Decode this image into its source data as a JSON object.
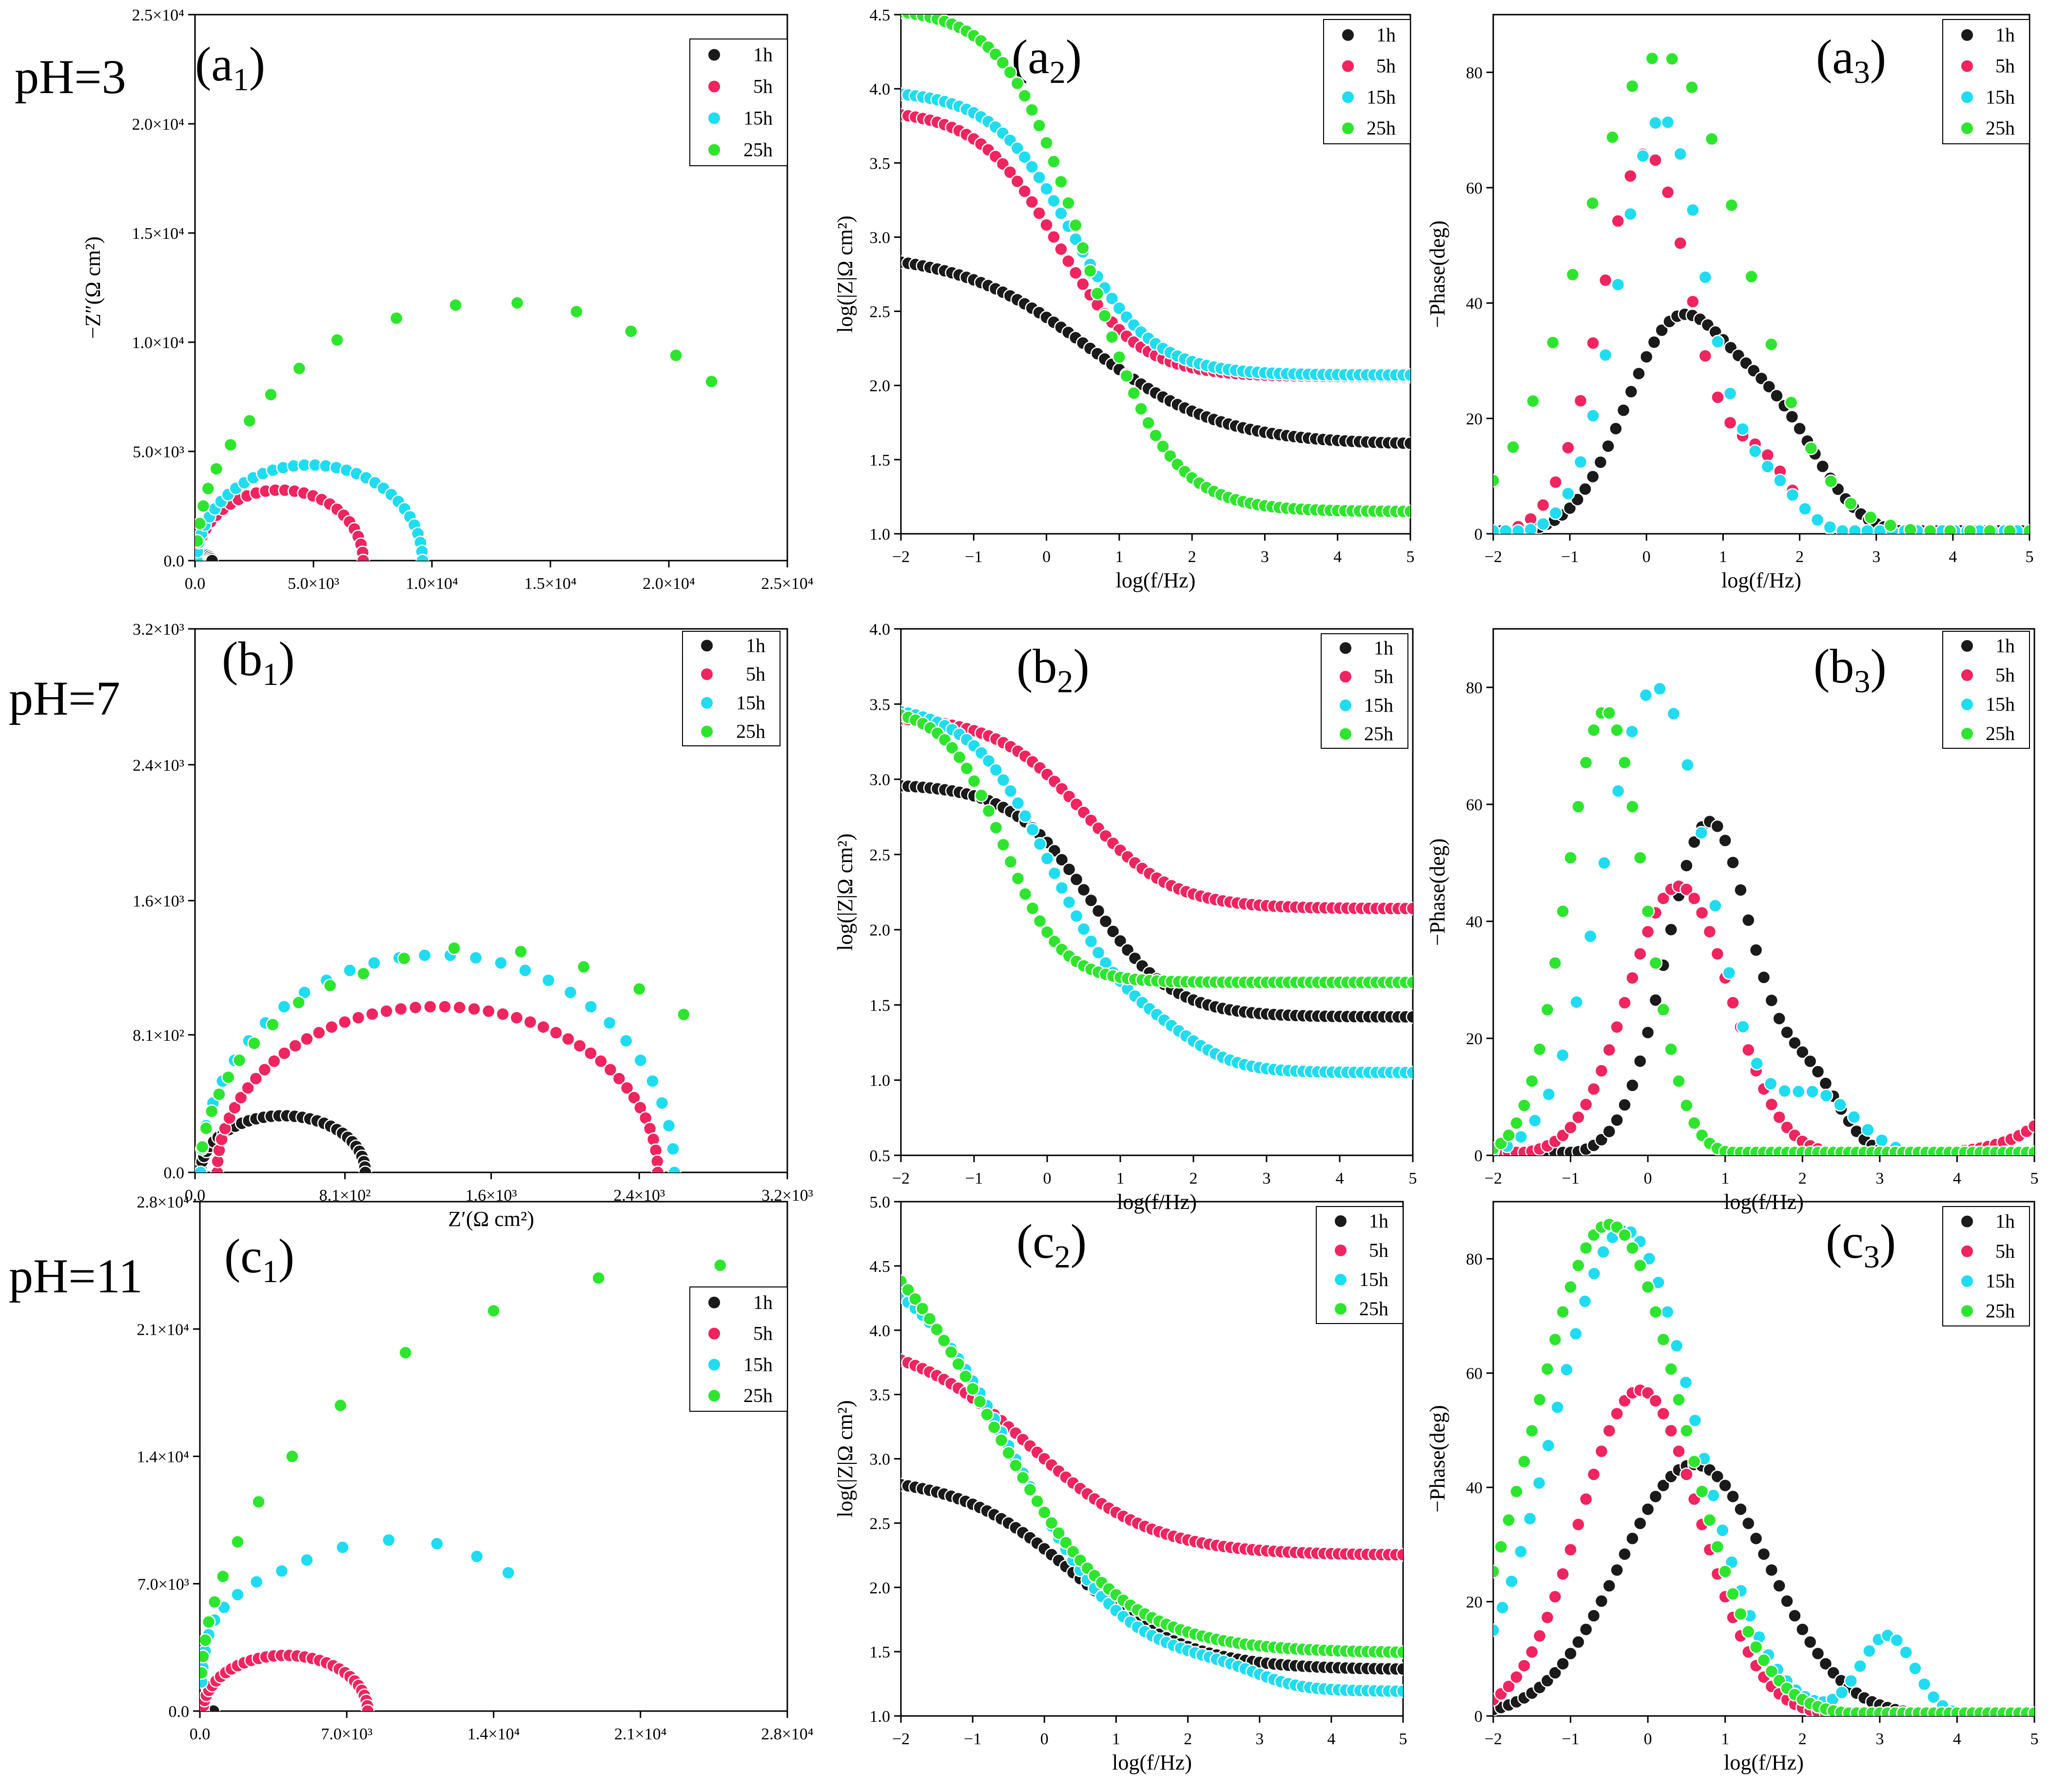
{
  "figure": {
    "row_labels": [
      "pH=3",
      "pH=7",
      "pH=11"
    ],
    "series_names": [
      "1h",
      "5h",
      "15h",
      "25h"
    ],
    "colors": {
      "1h": "#1a1a1a",
      "5h": "#f0245f",
      "15h": "#1fdcf0",
      "25h": "#2ee52e"
    }
  },
  "chart_data": [
    {
      "id": "a1",
      "type": "scatter",
      "panel_label": "a",
      "panel_sub": "1",
      "xlabel": "",
      "ylabel": "−Z″(Ω cm²)",
      "xlim": [
        0,
        25000
      ],
      "ylim": [
        0,
        25000
      ],
      "xticks": [
        0,
        5000,
        10000,
        15000,
        20000,
        25000
      ],
      "xticklabels": [
        "0.0",
        "5.0×10³",
        "1.0×10⁴",
        "1.5×10⁴",
        "2.0×10⁴",
        "2.5×10⁴"
      ],
      "yticks": [
        0,
        5000,
        10000,
        15000,
        20000,
        25000
      ],
      "yticklabels": [
        "0.0",
        "5.0×10³",
        "1.0×10⁴",
        "1.5×10⁴",
        "2.0×10⁴",
        "2.5×10⁴"
      ],
      "series": [
        {
          "name": "1h",
          "shape": "arc",
          "start": 30,
          "end": 720,
          "n": 14
        },
        {
          "name": "5h",
          "shape": "arc",
          "start": 80,
          "end": 7100,
          "n": 28
        },
        {
          "name": "15h",
          "shape": "arc",
          "start": 80,
          "end": 9600,
          "n": 34
        },
        {
          "name": "25h",
          "x": [
            100,
            200,
            350,
            550,
            900,
            1500,
            2300,
            3200,
            4400,
            6000,
            8500,
            11000,
            13600,
            16100,
            18400,
            20300,
            21800
          ],
          "y": [
            900,
            1700,
            2500,
            3300,
            4200,
            5300,
            6400,
            7600,
            8800,
            10100,
            11100,
            11700,
            11800,
            11400,
            10500,
            9400,
            8200
          ]
        }
      ]
    },
    {
      "id": "a2",
      "type": "scatter",
      "panel_label": "a",
      "panel_sub": "2",
      "xlabel": "log(f/Hz)",
      "ylabel": "log(|Z|Ω cm²)",
      "xlim": [
        -2,
        5
      ],
      "ylim": [
        1.0,
        4.5
      ],
      "xticks": [
        -2,
        -1,
        0,
        1,
        2,
        3,
        4,
        5
      ],
      "xticklabels": [
        "−2",
        "−1",
        "0",
        "1",
        "2",
        "3",
        "4",
        "5"
      ],
      "yticks": [
        1.0,
        1.5,
        2.0,
        2.5,
        3.0,
        3.5,
        4.0,
        4.5
      ],
      "yticklabels": [
        "1.0",
        "1.5",
        "2.0",
        "2.5",
        "3.0",
        "3.5",
        "4.0",
        "4.5"
      ],
      "series": [
        {
          "name": "1h",
          "shape": "sig",
          "lo": 1.6,
          "hi": 2.9,
          "c": 0.6,
          "w": 0.9,
          "n": 71
        },
        {
          "name": "5h",
          "shape": "sig",
          "lo": 2.06,
          "hi": 3.86,
          "c": 0.15,
          "w": 0.55,
          "n": 71
        },
        {
          "name": "15h",
          "shape": "sig",
          "lo": 2.07,
          "hi": 3.99,
          "c": 0.35,
          "w": 0.55,
          "n": 71
        },
        {
          "name": "25h",
          "shape": "sig",
          "lo": 1.15,
          "hi": 4.55,
          "c": 0.55,
          "w": 0.55,
          "n": 71
        }
      ]
    },
    {
      "id": "a3",
      "type": "scatter",
      "panel_label": "a",
      "panel_sub": "3",
      "xlabel": "log(f/Hz)",
      "ylabel": "−Phase(deg)",
      "xlim": [
        -2,
        5
      ],
      "ylim": [
        0,
        90
      ],
      "xticks": [
        -2,
        -1,
        0,
        1,
        2,
        3,
        4,
        5
      ],
      "xticklabels": [
        "−2",
        "−1",
        "0",
        "1",
        "2",
        "3",
        "4",
        "5"
      ],
      "yticks": [
        0,
        20,
        40,
        60,
        80
      ],
      "yticklabels": [
        "0",
        "20",
        "40",
        "60",
        "80"
      ],
      "series": [
        {
          "name": "1h",
          "shape": "peak",
          "p1": [
            36,
            0.4,
            0.75
          ],
          "p2": [
            18,
            1.7,
            0.6
          ],
          "base": 0,
          "n": 71
        },
        {
          "name": "5h",
          "shape": "peak",
          "p1": [
            66,
            0.0,
            0.65
          ],
          "p2": [
            12,
            1.5,
            0.4
          ],
          "base": 0,
          "n": 44
        },
        {
          "name": "15h",
          "shape": "peak",
          "p1": [
            72,
            0.2,
            0.62
          ],
          "p2": [
            8,
            1.6,
            0.4
          ],
          "base": 0,
          "n": 44
        },
        {
          "name": "25h",
          "shape": "peak",
          "p1": [
            83,
            0.2,
            1.15
          ],
          "base": 0,
          "n": 28
        }
      ]
    },
    {
      "id": "b1",
      "type": "scatter",
      "panel_label": "b",
      "panel_sub": "1",
      "xlabel": "Z′(Ω cm²)",
      "ylabel": "",
      "xlim": [
        0,
        3200
      ],
      "ylim": [
        0,
        3200
      ],
      "xticks": [
        0,
        810,
        1600,
        2400,
        3200
      ],
      "xticklabels": [
        "0.0",
        "8.1×10²",
        "1.6×10³",
        "2.4×10³",
        "3.2×10³"
      ],
      "yticks": [
        0,
        810,
        1600,
        2400,
        3200
      ],
      "yticklabels": [
        "0.0",
        "8.1×10²",
        "1.6×10³",
        "2.4×10³",
        "3.2×10³"
      ],
      "series": [
        {
          "name": "1h",
          "shape": "arc",
          "start": 30,
          "end": 920,
          "k": 0.75,
          "n": 34
        },
        {
          "name": "5h",
          "shape": "arc",
          "start": 120,
          "end": 2500,
          "k": 0.82,
          "n": 48
        },
        {
          "name": "15h",
          "shape": "arc",
          "start": 30,
          "end": 2590,
          "k": 1.0,
          "n": 30
        },
        {
          "name": "25h",
          "x": [
            40,
            60,
            90,
            130,
            180,
            240,
            320,
            420,
            560,
            730,
            910,
            1130,
            1400,
            1760,
            2100,
            2400,
            2640
          ],
          "y": [
            150,
            260,
            360,
            460,
            560,
            660,
            760,
            870,
            1000,
            1100,
            1170,
            1260,
            1320,
            1300,
            1210,
            1080,
            930
          ]
        }
      ]
    },
    {
      "id": "b2",
      "type": "scatter",
      "panel_label": "b",
      "panel_sub": "2",
      "xlabel": "log(f/Hz)",
      "ylabel": "log(|Z|Ω cm²)",
      "xlim": [
        -2,
        5
      ],
      "ylim": [
        0.5,
        4.0
      ],
      "xticks": [
        -2,
        -1,
        0,
        1,
        2,
        3,
        4,
        5
      ],
      "xticklabels": [
        "−2",
        "−1",
        "0",
        "1",
        "2",
        "3",
        "4",
        "5"
      ],
      "yticks": [
        0.5,
        1.0,
        1.5,
        2.0,
        2.5,
        3.0,
        3.5,
        4.0
      ],
      "yticklabels": [
        "0.5",
        "1.0",
        "1.5",
        "2.0",
        "2.5",
        "3.0",
        "3.5",
        "4.0"
      ],
      "series": [
        {
          "name": "1h",
          "shape": "sig",
          "lo": 1.42,
          "hi": 2.97,
          "c": 0.6,
          "w": 0.55,
          "n": 71
        },
        {
          "name": "5h",
          "shape": "sig",
          "lo": 2.14,
          "hi": 3.42,
          "c": 0.5,
          "w": 0.6,
          "n": 71
        },
        {
          "name": "15h",
          "shape": "sig2",
          "lo": 1.05,
          "hi": 3.5,
          "c": 0.05,
          "w": 0.55,
          "c2": 2.0,
          "w2": 0.35,
          "a2": 0.3,
          "n": 71
        },
        {
          "name": "25h",
          "shape": "sig",
          "lo": 1.65,
          "hi": 3.48,
          "c": -0.6,
          "w": 0.4,
          "n": 71
        }
      ]
    },
    {
      "id": "b3",
      "type": "scatter",
      "panel_label": "b",
      "panel_sub": "3",
      "xlabel": "log(f/Hz)",
      "ylabel": "−Phase(deg)",
      "xlim": [
        -2,
        5
      ],
      "ylim": [
        0,
        90
      ],
      "xticks": [
        -2,
        -1,
        0,
        1,
        2,
        3,
        4,
        5
      ],
      "xticklabels": [
        "−2",
        "−1",
        "0",
        "1",
        "2",
        "3",
        "4",
        "5"
      ],
      "yticks": [
        0,
        20,
        40,
        60,
        80
      ],
      "yticklabels": [
        "0",
        "20",
        "40",
        "60",
        "80"
      ],
      "series": [
        {
          "name": "1h",
          "shape": "peak",
          "p1": [
            57,
            0.8,
            0.62
          ],
          "p2": [
            12,
            2.1,
            0.4
          ],
          "base": 0,
          "n": 71
        },
        {
          "name": "5h",
          "shape": "peak",
          "p1": [
            46,
            0.4,
            0.72
          ],
          "base": 0,
          "tail": 5,
          "n": 71
        },
        {
          "name": "15h",
          "shape": "peak",
          "p1": [
            80,
            0.1,
            0.75
          ],
          "p2": [
            10,
            2.2,
            0.5
          ],
          "base": 0,
          "n": 40
        },
        {
          "name": "25h",
          "shape": "peak",
          "p1": [
            76,
            -0.55,
            0.55
          ],
          "base": 0,
          "n": 71
        }
      ]
    },
    {
      "id": "c1",
      "type": "scatter",
      "panel_label": "c",
      "panel_sub": "1",
      "xlabel": "",
      "ylabel": "",
      "xlim": [
        0,
        28000
      ],
      "ylim": [
        0,
        28000
      ],
      "xticks": [
        0,
        7000,
        14000,
        21000,
        28000
      ],
      "xticklabels": [
        "0.0",
        "7.0×10³",
        "1.4×10⁴",
        "2.1×10⁴",
        "2.8×10⁴"
      ],
      "yticks": [
        0,
        7000,
        14000,
        21000,
        28000
      ],
      "yticklabels": [
        "0.0",
        "7.0×10³",
        "1.4×10⁴",
        "2.1×10⁴",
        "2.8×10⁴"
      ],
      "series": [
        {
          "name": "1h",
          "shape": "arc",
          "start": 50,
          "end": 650,
          "n": 14
        },
        {
          "name": "5h",
          "shape": "arc",
          "start": 150,
          "end": 8000,
          "k": 0.78,
          "n": 34
        },
        {
          "name": "15h",
          "x": [
            80,
            140,
            250,
            420,
            700,
            1150,
            1800,
            2700,
            3900,
            5100,
            6800,
            9000,
            11300,
            13200,
            14700
          ],
          "y": [
            1600,
            2400,
            3300,
            4200,
            5000,
            5700,
            6400,
            7100,
            7700,
            8300,
            9000,
            9400,
            9200,
            8500,
            7600
          ]
        },
        {
          "name": "25h",
          "x": [
            80,
            150,
            260,
            420,
            700,
            1100,
            1800,
            2800,
            4400,
            6700,
            9800,
            14000,
            19000,
            24800
          ],
          "y": [
            2100,
            3000,
            3900,
            4900,
            6000,
            7400,
            9300,
            11500,
            14000,
            16800,
            19700,
            22000,
            23800,
            24500
          ]
        }
      ]
    },
    {
      "id": "c2",
      "type": "scatter",
      "panel_label": "c",
      "panel_sub": "2",
      "xlabel": "log(f/Hz)",
      "ylabel": "log(|Z|Ω cm²)",
      "xlim": [
        -2,
        5
      ],
      "ylim": [
        1.0,
        5.0
      ],
      "xticks": [
        -2,
        -1,
        0,
        1,
        2,
        3,
        4,
        5
      ],
      "xticklabels": [
        "−2",
        "−1",
        "0",
        "1",
        "2",
        "3",
        "4",
        "5"
      ],
      "yticks": [
        1.0,
        1.5,
        2.0,
        2.5,
        3.0,
        3.5,
        4.0,
        4.5,
        5.0
      ],
      "yticklabels": [
        "1.0",
        "1.5",
        "2.0",
        "2.5",
        "3.0",
        "3.5",
        "4.0",
        "4.5",
        "5.0"
      ],
      "series": [
        {
          "name": "1h",
          "shape": "sig",
          "lo": 1.36,
          "hi": 2.87,
          "c": 0.4,
          "w": 0.8,
          "n": 71
        },
        {
          "name": "5h",
          "shape": "sig",
          "lo": 2.25,
          "hi": 3.95,
          "c": -0.2,
          "w": 0.85,
          "n": 71
        },
        {
          "name": "15h",
          "shape": "sig2",
          "lo": 1.19,
          "hi": 4.6,
          "c": -0.4,
          "w": 0.75,
          "c2": 3.0,
          "w2": 0.3,
          "a2": 0.2,
          "n": 71
        },
        {
          "name": "25h",
          "shape": "sig",
          "lo": 1.49,
          "hi": 5.1,
          "c": -0.75,
          "w": 0.9,
          "n": 71
        }
      ]
    },
    {
      "id": "c3",
      "type": "scatter",
      "panel_label": "c",
      "panel_sub": "3",
      "xlabel": "log(f/Hz)",
      "ylabel": "−Phase(deg)",
      "xlim": [
        -2,
        5
      ],
      "ylim": [
        0,
        90
      ],
      "xticks": [
        -2,
        -1,
        0,
        1,
        2,
        3,
        4,
        5
      ],
      "xticklabels": [
        "−2",
        "−1",
        "0",
        "1",
        "2",
        "3",
        "4",
        "5"
      ],
      "yticks": [
        0,
        20,
        40,
        60,
        80
      ],
      "yticklabels": [
        "0",
        "20",
        "40",
        "60",
        "80"
      ],
      "series": [
        {
          "name": "1h",
          "shape": "peak",
          "p1": [
            44,
            0.6,
            1.05
          ],
          "base": 0,
          "n": 71
        },
        {
          "name": "5h",
          "shape": "peak",
          "p1": [
            57,
            -0.1,
            0.85
          ],
          "base": 0,
          "n": 71
        },
        {
          "name": "15h",
          "shape": "peak",
          "p1": [
            85,
            -0.3,
            1.0
          ],
          "p2": [
            14,
            3.1,
            0.35
          ],
          "base": 0,
          "n": 60
        },
        {
          "name": "25h",
          "shape": "peak",
          "p1": [
            86,
            -0.5,
            1.05
          ],
          "base": 0,
          "n": 71
        }
      ]
    }
  ]
}
